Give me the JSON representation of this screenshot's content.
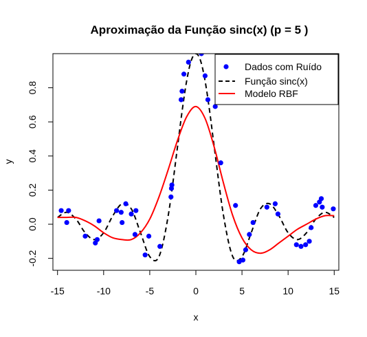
{
  "chart_data": {
    "type": "scatter",
    "title": "Aproximação da Função sinc(x) (p = 5 )",
    "xlabel": "x",
    "ylabel": "y",
    "xlim": [
      -15.5,
      15.5
    ],
    "ylim": [
      -0.27,
      1.0
    ],
    "x_ticks": [
      -15,
      -10,
      -5,
      0,
      5,
      10,
      15
    ],
    "x_tick_labels": [
      "-15",
      "-10",
      "-5",
      "0",
      "5",
      "10",
      "15"
    ],
    "y_ticks": [
      -0.2,
      0.0,
      0.2,
      0.4,
      0.6,
      0.8
    ],
    "y_tick_labels": [
      "-0.2",
      "0.0",
      "0.2",
      "0.4",
      "0.6",
      "0.8"
    ],
    "legend_position": "top-right",
    "series": [
      {
        "name": "Dados com Ruído",
        "kind": "points",
        "color": "#0000ff",
        "x": [
          -14.6,
          -14.0,
          -13.8,
          -12.0,
          -10.9,
          -10.7,
          -10.5,
          -8.6,
          -8.1,
          -8.0,
          -7.6,
          -7.0,
          -6.6,
          -6.5,
          -5.5,
          -5.1,
          -3.9,
          -2.7,
          -2.65,
          -2.6,
          -1.6,
          -1.5,
          -1.3,
          -0.8,
          0.6,
          1.0,
          1.3,
          2.1,
          2.7,
          4.3,
          4.7,
          5.1,
          5.4,
          5.8,
          6.2,
          7.7,
          8.6,
          8.9,
          10.9,
          11.4,
          11.9,
          12.3,
          12.5,
          13.0,
          13.4,
          13.6,
          13.7,
          14.9
        ],
        "y": [
          0.08,
          0.01,
          0.08,
          -0.07,
          -0.11,
          -0.09,
          0.02,
          0.08,
          0.07,
          0.01,
          0.12,
          0.06,
          -0.06,
          0.08,
          -0.18,
          -0.07,
          -0.13,
          0.16,
          0.21,
          0.23,
          0.73,
          0.78,
          0.88,
          0.95,
          1.0,
          0.87,
          0.73,
          0.69,
          0.36,
          0.11,
          -0.22,
          -0.21,
          -0.15,
          -0.06,
          0.01,
          0.1,
          0.12,
          0.06,
          -0.12,
          -0.13,
          -0.12,
          -0.1,
          -0.02,
          0.11,
          0.13,
          0.15,
          0.1,
          0.09
        ]
      },
      {
        "name": "Função sinc(x)",
        "kind": "line",
        "style": "dashed",
        "color": "#000000",
        "x": [
          -15,
          -14,
          -13,
          -12,
          -11,
          -10,
          -9,
          -8,
          -7,
          -6,
          -5,
          -4,
          -3,
          -2,
          -1.5,
          -1,
          -0.5,
          0,
          0.5,
          1,
          1.5,
          2,
          3,
          4,
          5,
          6,
          7,
          8,
          9,
          10,
          11,
          12,
          13,
          14,
          15
        ],
        "y": [
          0.04,
          0.07,
          0.03,
          -0.05,
          -0.09,
          -0.05,
          0.05,
          0.12,
          0.09,
          -0.05,
          -0.19,
          -0.19,
          0.05,
          0.45,
          0.66,
          0.84,
          0.96,
          1.0,
          0.96,
          0.84,
          0.66,
          0.45,
          0.05,
          -0.19,
          -0.19,
          -0.05,
          0.09,
          0.12,
          0.05,
          -0.05,
          -0.09,
          -0.05,
          0.03,
          0.07,
          0.04
        ]
      },
      {
        "name": "Modelo RBF",
        "kind": "line",
        "style": "solid",
        "color": "#ff0000",
        "x": [
          -15,
          -14,
          -13,
          -12,
          -11,
          -10,
          -9,
          -8,
          -7,
          -6,
          -5,
          -4,
          -3,
          -2,
          -1,
          0,
          1,
          2,
          3,
          4,
          5,
          6,
          7,
          8,
          9,
          10,
          11,
          12,
          13,
          14,
          15
        ],
        "y": [
          0.04,
          0.04,
          0.04,
          0.02,
          -0.01,
          -0.05,
          -0.08,
          -0.09,
          -0.09,
          -0.05,
          0.03,
          0.16,
          0.32,
          0.49,
          0.63,
          0.69,
          0.62,
          0.45,
          0.24,
          0.05,
          -0.08,
          -0.15,
          -0.17,
          -0.15,
          -0.11,
          -0.07,
          -0.03,
          0.0,
          0.03,
          0.05,
          0.05
        ]
      }
    ]
  }
}
